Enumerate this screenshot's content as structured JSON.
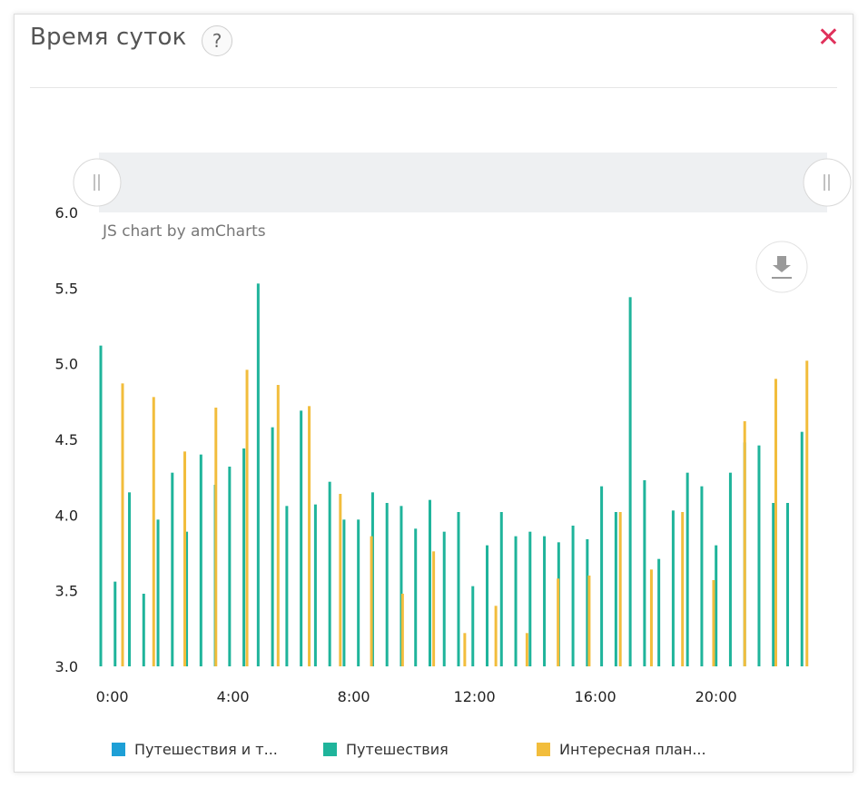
{
  "header": {
    "title": "Время суток",
    "help_label": "?",
    "close_label": "✕"
  },
  "credit": "JS chart by amCharts",
  "colors": {
    "series1": "#1e9fd6",
    "series2": "#1fb49b",
    "series3": "#f2bd3c",
    "close": "#e0315b"
  },
  "chart_data": {
    "type": "bar",
    "ylim": [
      3.0,
      6.0
    ],
    "yticks": [
      "3.0",
      "3.5",
      "4.0",
      "4.5",
      "5.0",
      "5.5",
      "6.0"
    ],
    "xticks": [
      {
        "label": "0:00",
        "hour": 0.5
      },
      {
        "label": "4:00",
        "hour": 4.5
      },
      {
        "label": "8:00",
        "hour": 8.5
      },
      {
        "label": "12:00",
        "hour": 12.5
      },
      {
        "label": "16:00",
        "hour": 16.5
      },
      {
        "label": "20:00",
        "hour": 20.5
      }
    ],
    "hours": 24,
    "series": [
      {
        "name": "Путешествия и т...",
        "values": [
          null,
          null,
          null,
          null,
          null,
          null,
          null,
          null,
          null,
          null,
          null,
          null,
          null,
          null,
          null,
          null,
          null,
          null,
          null,
          null,
          null,
          null,
          null,
          null
        ]
      },
      {
        "name": "Путешествия",
        "values": [
          [
            5.12,
            3.56,
            4.15
          ],
          [
            3.48,
            3.97,
            4.28
          ],
          [
            3.89,
            4.4,
            4.2
          ],
          [
            4.32,
            4.44,
            5.53
          ],
          [
            4.58,
            4.06,
            4.69
          ],
          [
            4.07,
            4.22,
            3.97
          ],
          [
            3.97,
            4.15,
            4.08
          ],
          [
            4.06,
            3.91,
            4.1
          ],
          [
            3.89,
            4.02,
            3.53
          ],
          [
            3.8,
            4.02,
            3.86
          ],
          [
            3.89,
            3.86,
            3.82
          ],
          [
            3.93,
            3.84,
            4.19
          ],
          [
            4.02,
            5.44,
            4.23
          ],
          [
            3.71,
            4.03,
            4.28
          ],
          [
            4.19,
            3.8,
            4.28
          ],
          [
            4.48,
            4.46,
            4.08
          ],
          [
            4.08,
            4.55,
            null
          ],
          [
            null,
            null,
            null
          ],
          [
            null,
            null,
            null
          ],
          [
            null,
            null,
            null
          ],
          [
            null,
            null,
            null
          ],
          [
            null,
            null,
            null
          ],
          [
            null,
            null,
            null
          ],
          [
            null,
            null,
            null
          ]
        ]
      },
      {
        "name": "Интересная план...",
        "values": [
          4.87,
          4.78,
          4.42,
          4.71,
          4.96,
          4.86,
          4.72,
          4.14,
          3.86,
          3.48,
          3.76,
          3.22,
          3.4,
          3.22,
          3.58,
          3.6,
          4.02,
          3.64,
          4.02,
          3.57,
          4.62,
          4.9,
          5.02,
          null
        ]
      }
    ]
  }
}
